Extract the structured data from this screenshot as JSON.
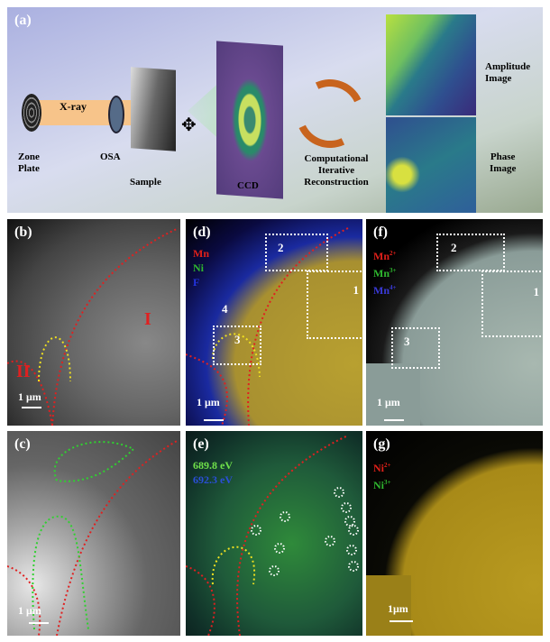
{
  "panel_a": {
    "label": "(a)",
    "zone_plate": "Zone\nPlate",
    "xray": "X-ray",
    "osa": "OSA",
    "sample": "Sample",
    "ccd": "CCD",
    "reconstruction": "Computational\nIterative\nReconstruction",
    "amplitude": "Amplitude\nImage",
    "phase": "Phase\nImage"
  },
  "panel_b": {
    "label": "(b)",
    "region_1": "I",
    "region_2": "II",
    "scale": "1 μm"
  },
  "panel_c": {
    "label": "(c)",
    "scale": "1 μm"
  },
  "panel_d": {
    "label": "(d)",
    "legend": [
      {
        "text": "Mn",
        "color": "#e0201a"
      },
      {
        "text": "Ni",
        "color": "#2fb82f"
      },
      {
        "text": "F",
        "color": "#2233dd"
      }
    ],
    "boxes": [
      "1",
      "2",
      "3",
      "4"
    ],
    "scale": "1 μm"
  },
  "panel_e": {
    "label": "(e)",
    "legend": [
      {
        "text": "689.8 eV",
        "color": "#6fe04a"
      },
      {
        "text": "692.3 eV",
        "color": "#2a4fd8"
      }
    ]
  },
  "panel_f": {
    "label": "(f)",
    "legend": [
      {
        "text": "Mn",
        "sup": "2+",
        "color": "#e0201a"
      },
      {
        "text": "Mn",
        "sup": "3+",
        "color": "#2fb82f"
      },
      {
        "text": "Mn",
        "sup": "4+",
        "color": "#3a3ad8"
      }
    ],
    "boxes": [
      "1",
      "2",
      "3"
    ],
    "scale": "1 μm"
  },
  "panel_g": {
    "label": "(g)",
    "legend": [
      {
        "text": "Ni",
        "sup": "2+",
        "color": "#e0201a"
      },
      {
        "text": "Ni",
        "sup": "3+",
        "color": "#2fb82f"
      }
    ],
    "scale": "1μm"
  },
  "colors": {
    "red_boundary": "#e02020",
    "yellow_boundary": "#f0e020",
    "arrows": "#c8641e"
  }
}
